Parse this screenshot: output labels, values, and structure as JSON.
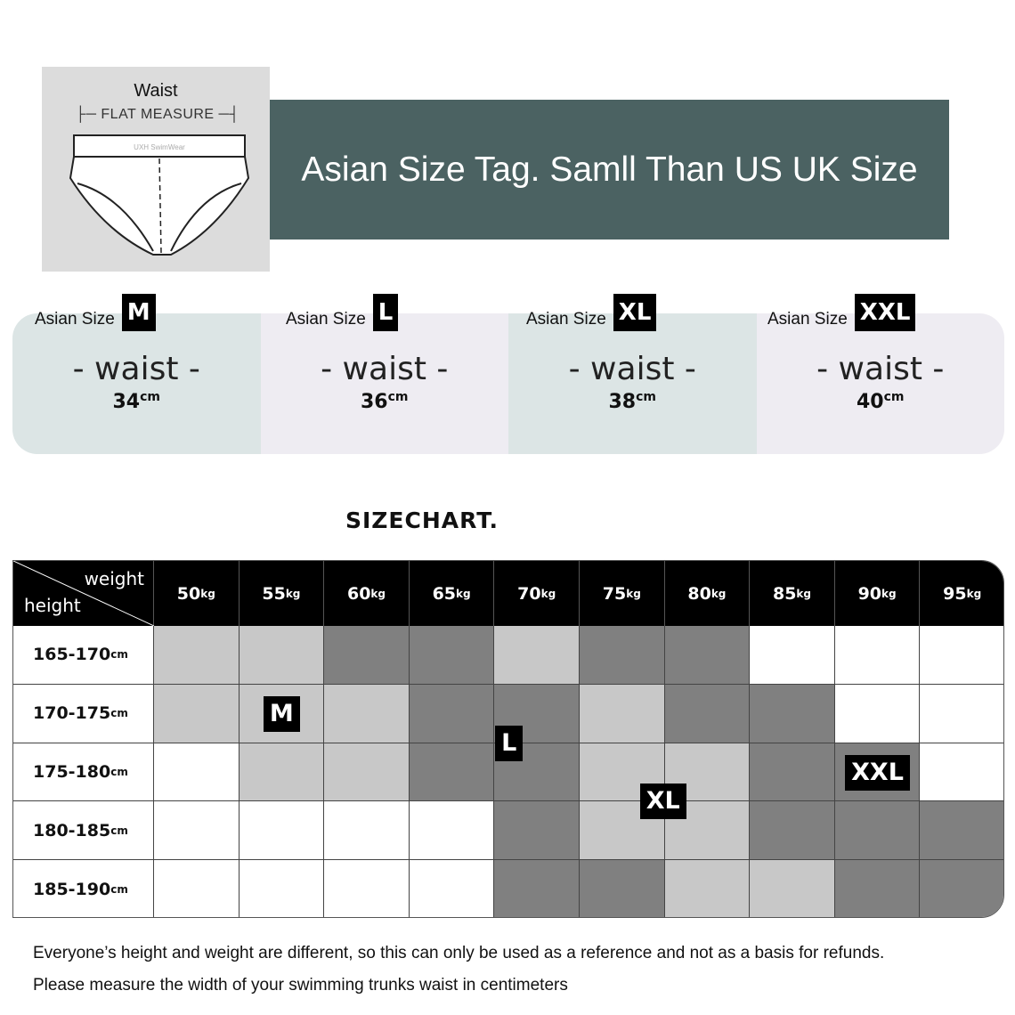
{
  "diagram": {
    "title": "Waist",
    "measure_label": "FLAT MEASURE",
    "brand_on_band": "UXH SwimWear"
  },
  "banner": {
    "text": "Asian Size Tag.  Samll Than US UK Size"
  },
  "cards": [
    {
      "label": "Asian Size",
      "size": "M",
      "measure": "-  waist  -",
      "value": "34",
      "unit": "cm"
    },
    {
      "label": "Asian Size",
      "size": "L",
      "measure": "-  waist  -",
      "value": "36",
      "unit": "cm"
    },
    {
      "label": "Asian Size",
      "size": "XL",
      "measure": "-  waist  -",
      "value": "38",
      "unit": "cm"
    },
    {
      "label": "Asian Size",
      "size": "XXL",
      "measure": "-  waist  -",
      "value": "40",
      "unit": "cm"
    }
  ],
  "sizechart": {
    "title": "SIZECHART.",
    "corner_top": "weight",
    "corner_bottom": "height",
    "weights": [
      "50",
      "55",
      "60",
      "65",
      "70",
      "75",
      "80",
      "85",
      "90",
      "95"
    ],
    "weight_unit": "kg",
    "heights": [
      "165-170",
      "170-175",
      "175-180",
      "180-185",
      "185-190"
    ],
    "height_unit": "cm",
    "colors": {
      "L": "#c8c8c8",
      "D": "#808080",
      "W": "#ffffff"
    },
    "cells": [
      [
        "L",
        "L",
        "D",
        "D",
        "L",
        "D",
        "D",
        "W",
        "W",
        "W"
      ],
      [
        "L",
        "L",
        "L",
        "D",
        "D",
        "L",
        "D",
        "D",
        "W",
        "W"
      ],
      [
        "W",
        "L",
        "L",
        "D",
        "D",
        "L",
        "L",
        "D",
        "D",
        "W"
      ],
      [
        "W",
        "W",
        "W",
        "W",
        "D",
        "L",
        "L",
        "D",
        "D",
        "D"
      ],
      [
        "W",
        "W",
        "W",
        "W",
        "D",
        "D",
        "L",
        "L",
        "D",
        "D"
      ]
    ],
    "badges": [
      "M",
      "L",
      "XL",
      "XXL"
    ]
  },
  "notes": [
    "Everyone’s height and weight are different, so this can only be used as a reference and not as a basis for refunds.",
    "Please measure the width of your swimming trunks waist in centimeters"
  ]
}
